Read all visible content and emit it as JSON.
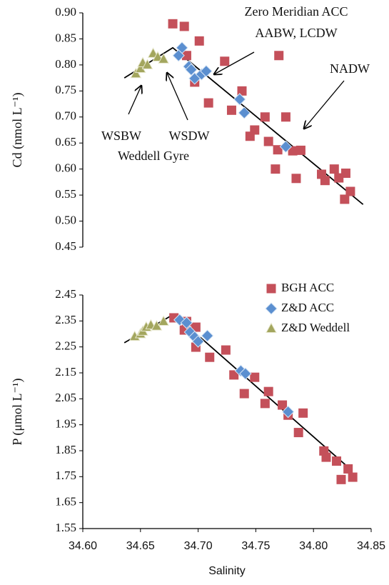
{
  "chart_data": [
    {
      "type": "scatter",
      "ylabel": "Cd (nmol L⁻¹)",
      "xlim": [
        34.6,
        34.85
      ],
      "ylim": [
        0.45,
        0.9
      ],
      "yticks": [
        0.45,
        {
          "value": 0.5,
          "label": "0.50"
        },
        0.55,
        {
          "value": 0.6,
          "label": "0.60"
        },
        0.65,
        {
          "value": 0.7,
          "label": "0.70"
        },
        0.75,
        {
          "value": 0.8,
          "label": "0.80"
        },
        0.85,
        {
          "value": 0.9,
          "label": "0.90"
        }
      ],
      "series": [
        {
          "color": "#c4505a",
          "marker": "square",
          "x": [
            34.678,
            34.688,
            34.701,
            34.69,
            34.77,
            34.723,
            34.697,
            34.709,
            34.738,
            34.729,
            34.758,
            34.776,
            34.749,
            34.745,
            34.761,
            34.769,
            34.782,
            34.789,
            34.767,
            34.785,
            34.807,
            34.81,
            34.818,
            34.822,
            34.828,
            34.827,
            34.832
          ],
          "y": [
            0.879,
            0.874,
            0.846,
            0.818,
            0.818,
            0.807,
            0.767,
            0.727,
            0.75,
            0.713,
            0.7,
            0.7,
            0.675,
            0.663,
            0.653,
            0.637,
            0.635,
            0.636,
            0.6,
            0.582,
            0.59,
            0.578,
            0.6,
            0.583,
            0.592,
            0.542,
            0.557
          ]
        },
        {
          "color": "#5b8fd0",
          "marker": "diamond",
          "x": [
            34.686,
            34.683,
            34.692,
            34.694,
            34.697,
            34.703,
            34.707,
            34.736,
            34.74,
            34.776
          ],
          "y": [
            0.833,
            0.818,
            0.797,
            0.791,
            0.774,
            0.782,
            0.788,
            0.734,
            0.708,
            0.643
          ]
        },
        {
          "color": "#a3a65e",
          "marker": "triangle",
          "x": [
            34.646,
            34.65,
            34.652,
            34.656,
            34.661,
            34.665,
            34.67
          ],
          "y": [
            0.783,
            0.793,
            0.804,
            0.8,
            0.822,
            0.815,
            0.811
          ]
        }
      ],
      "lines": [
        {
          "color": "#000000",
          "x": [
            34.636,
            34.678,
            34.843
          ],
          "y": [
            0.775,
            0.833,
            0.532
          ]
        }
      ],
      "annotations": [
        "Zero Meridian ACC",
        "AABW, LCDW",
        "NADW",
        "WSBW",
        "WSDW",
        "Weddell Gyre"
      ]
    },
    {
      "type": "scatter",
      "ylabel": "P (μmol L⁻¹)",
      "xlabel": "Salinity",
      "xlim": [
        34.6,
        34.85
      ],
      "ylim": [
        1.55,
        2.45
      ],
      "xticks": [
        {
          "value": 34.6,
          "label": "34.60"
        },
        34.65,
        {
          "value": 34.7,
          "label": "34.70"
        },
        34.75,
        {
          "value": 34.8,
          "label": "34.80"
        },
        34.85
      ],
      "yticks": [
        1.55,
        1.65,
        1.75,
        1.85,
        1.95,
        2.05,
        2.15,
        2.25,
        2.35,
        2.45
      ],
      "legend": "upper right",
      "series": [
        {
          "name": "BGH ACC",
          "color": "#c4505a",
          "marker": "square",
          "x": [
            34.679,
            34.69,
            34.688,
            34.698,
            34.698,
            34.71,
            34.724,
            34.731,
            34.74,
            34.749,
            34.761,
            34.758,
            34.773,
            34.778,
            34.791,
            34.787,
            34.809,
            34.811,
            34.82,
            34.824,
            34.83,
            34.834
          ],
          "y": [
            2.362,
            2.348,
            2.315,
            2.326,
            2.249,
            2.21,
            2.238,
            2.142,
            2.07,
            2.133,
            2.078,
            2.032,
            2.026,
            1.987,
            1.995,
            1.92,
            1.849,
            1.825,
            1.81,
            1.739,
            1.78,
            1.748
          ]
        },
        {
          "name": "Z&D ACC",
          "color": "#5b8fd0",
          "marker": "diamond",
          "x": [
            34.684,
            34.69,
            34.693,
            34.697,
            34.7,
            34.708,
            34.737,
            34.741,
            34.778
          ],
          "y": [
            2.354,
            2.343,
            2.307,
            2.288,
            2.271,
            2.293,
            2.158,
            2.147,
            2.0
          ]
        },
        {
          "name": "Z&D Weddell",
          "color": "#a3a65e",
          "marker": "triangle",
          "x": [
            34.645,
            34.65,
            34.652,
            34.655,
            34.659,
            34.664,
            34.67
          ],
          "y": [
            2.29,
            2.3,
            2.31,
            2.326,
            2.334,
            2.33,
            2.348
          ]
        }
      ],
      "lines": [
        {
          "color": "#000000",
          "x": [
            34.636,
            34.679,
            34.833
          ],
          "y": [
            2.266,
            2.376,
            1.775
          ]
        }
      ]
    }
  ]
}
